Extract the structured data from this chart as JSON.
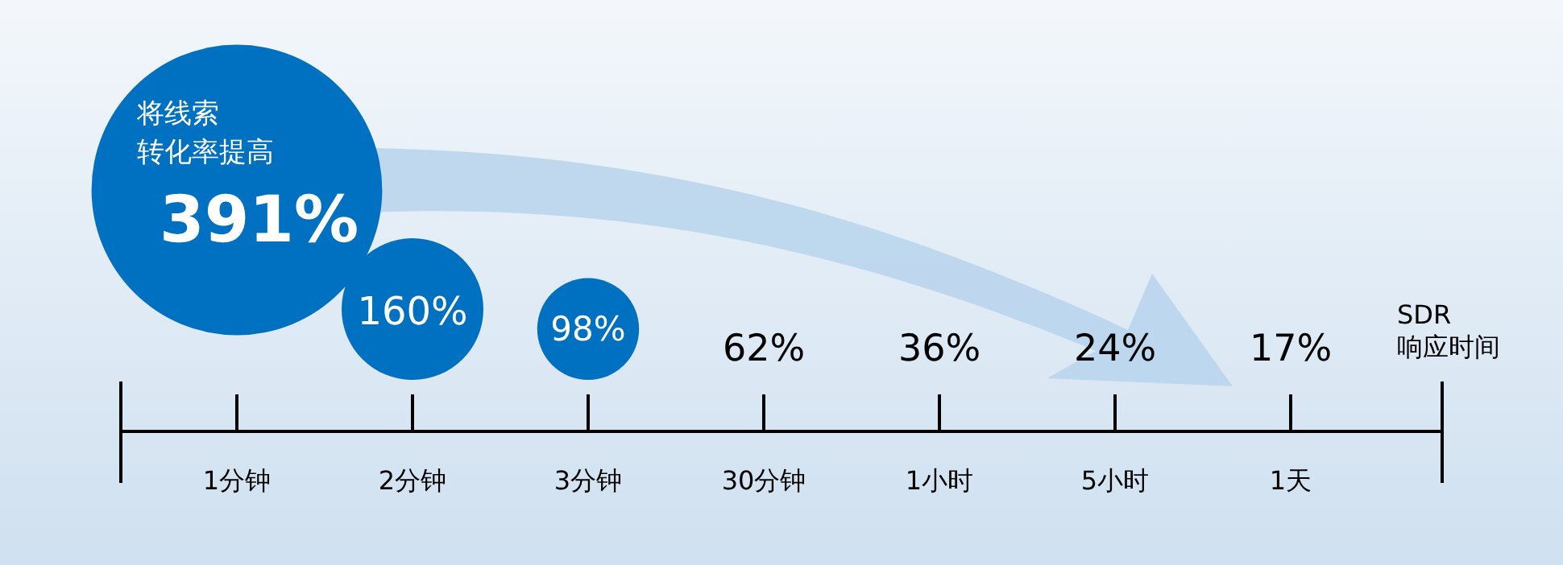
{
  "chart_data": {
    "type": "other",
    "xlabel": "SDR 响应时间",
    "annotations": [
      "将线索",
      "转化率提高"
    ],
    "categories": [
      "1分钟",
      "2分钟",
      "3分钟",
      "30分钟",
      "1小时",
      "5小时",
      "1天"
    ],
    "values": [
      391,
      160,
      98,
      62,
      36,
      24,
      17
    ],
    "value_labels": [
      "391%",
      "160%",
      "98%",
      "62%",
      "36%",
      "24%",
      "17%"
    ],
    "colors": [
      "#0070c0",
      "#0070c0",
      "#0070c0",
      null,
      null,
      null,
      null
    ]
  }
}
